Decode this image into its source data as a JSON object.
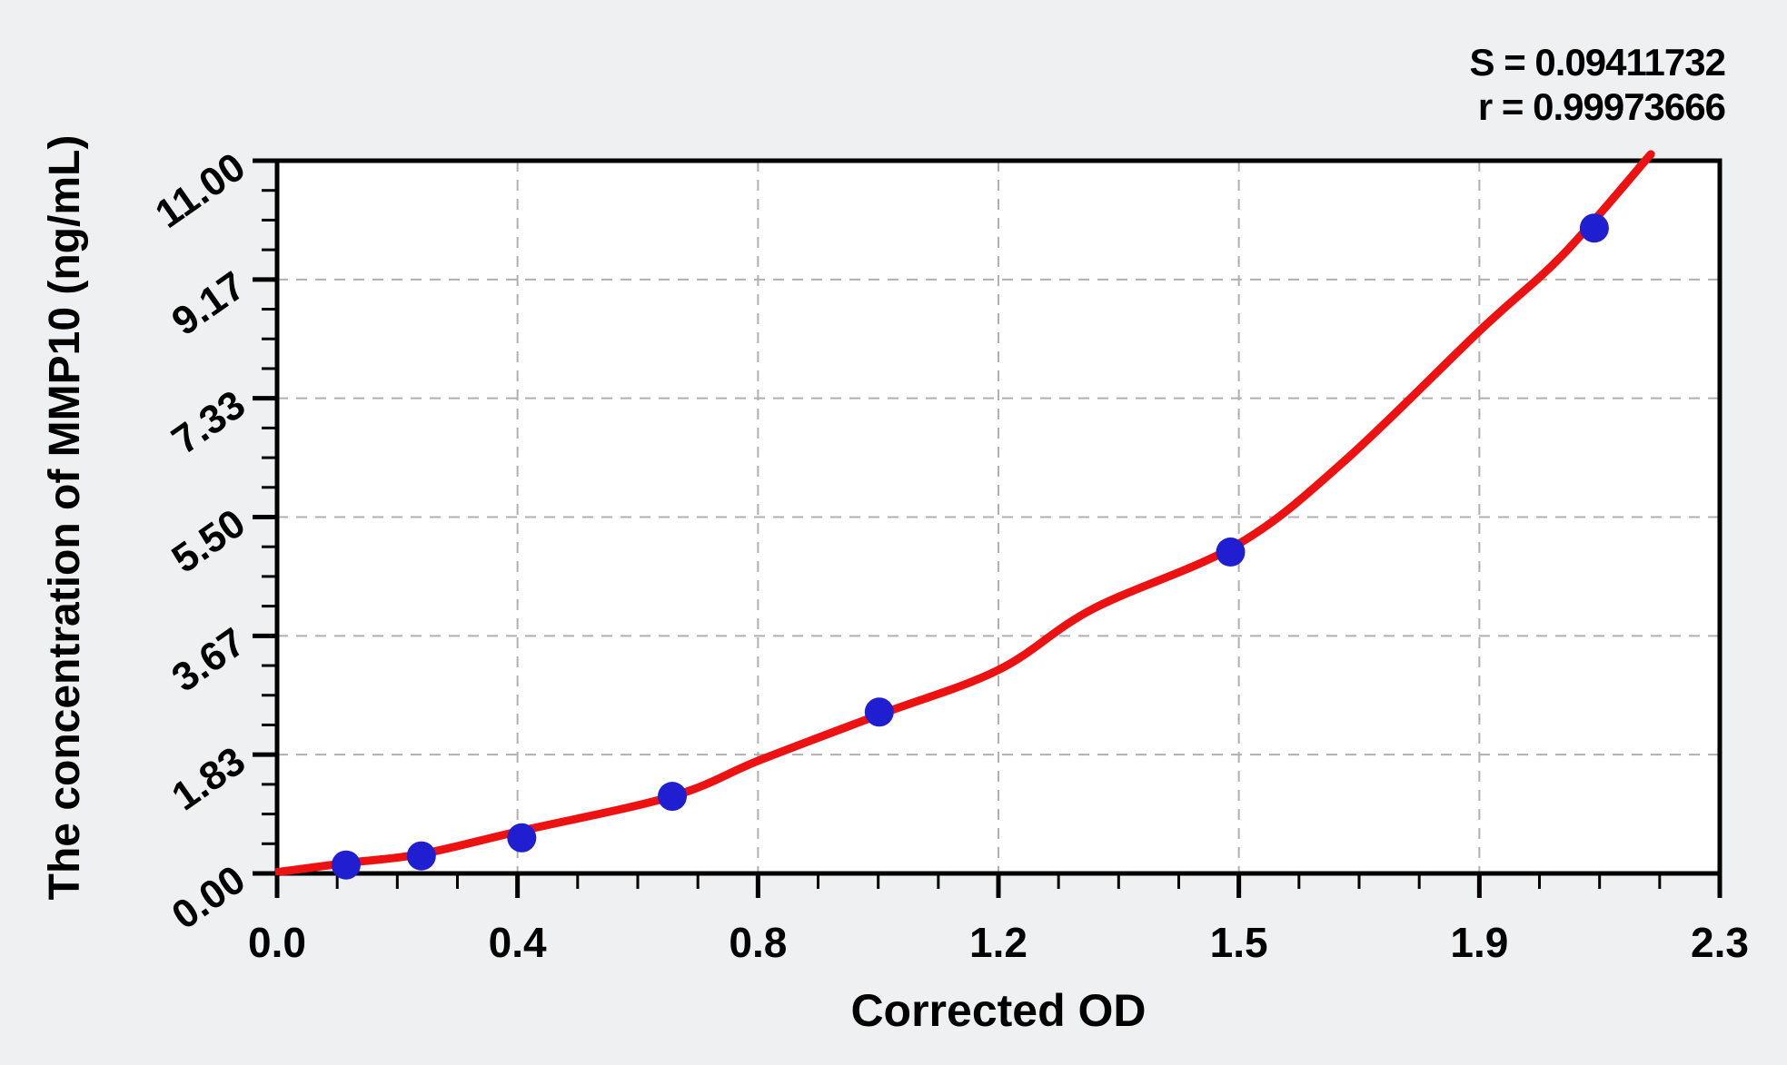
{
  "stats": {
    "s_line": "S = 0.09411732",
    "r_line": "r = 0.99973666"
  },
  "axes": {
    "y_title": "The concentration of MMP10 (ng/mL)",
    "x_title": "Corrected OD"
  },
  "colors": {
    "page_background": "#eff0f1",
    "plot_background": "#ffffff",
    "frame_and_ticks": "#000000",
    "gridline": "#b0b0b0",
    "curve": "#ee1111",
    "points": "#1f1fd1"
  },
  "chart_data": {
    "type": "scatter",
    "title": "",
    "xlabel": "Corrected OD",
    "ylabel": "The concentration of MMP10 (ng/mL)",
    "xlim": [
      0,
      2.3
    ],
    "ylim": [
      0,
      11
    ],
    "x_major_ticks": [
      0,
      0.3833,
      0.7667,
      1.15,
      1.5333,
      1.9167,
      2.3
    ],
    "x_tick_labels": [
      "0.0",
      "0.4",
      "0.8",
      "1.2",
      "1.5",
      "1.9",
      "2.3"
    ],
    "y_major_ticks": [
      0,
      1.8333,
      3.6667,
      5.5,
      7.3333,
      9.1667,
      11
    ],
    "y_tick_labels": [
      "0.00",
      "1.83",
      "3.67",
      "5.50",
      "7.33",
      "9.17",
      "11.00"
    ],
    "minor_ticks_per_interval": 3,
    "grid": "dashed gridlines at interior major ticks, both axes",
    "legend": "none",
    "series": [
      {
        "name": "standard data points",
        "type": "scatter",
        "color": "#1f1fd1",
        "x": [
          0.11,
          0.23,
          0.39,
          0.63,
          0.96,
          1.52,
          2.1
        ],
        "y": [
          0.13,
          0.27,
          0.55,
          1.19,
          2.49,
          4.96,
          9.96
        ]
      },
      {
        "name": "fitted standard curve",
        "type": "line",
        "color": "#ee1111",
        "samples_xy": [
          [
            0.0,
            0.02
          ],
          [
            0.11,
            0.16
          ],
          [
            0.23,
            0.3
          ],
          [
            0.39,
            0.66
          ],
          [
            0.63,
            1.19
          ],
          [
            0.77,
            1.75
          ],
          [
            0.96,
            2.45
          ],
          [
            1.15,
            3.14
          ],
          [
            1.3,
            4.08
          ],
          [
            1.53,
            5.07
          ],
          [
            1.7,
            6.35
          ],
          [
            1.92,
            8.4
          ],
          [
            2.05,
            9.55
          ],
          [
            2.19,
            11.1
          ]
        ]
      }
    ],
    "fit_stats": {
      "S": "0.09411732",
      "r": "0.99973666"
    }
  }
}
